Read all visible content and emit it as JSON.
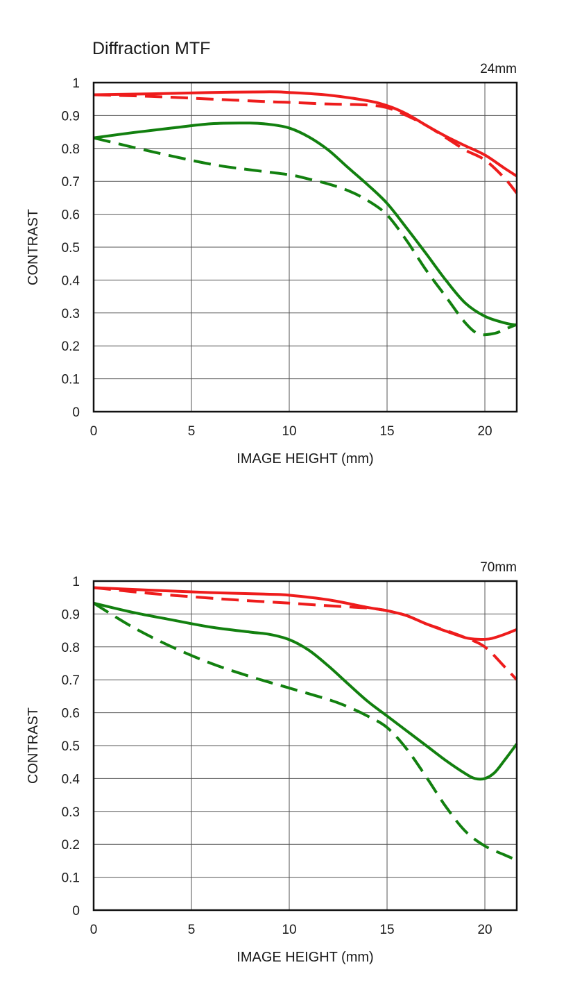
{
  "title": "Diffraction MTF",
  "colors": {
    "red": "#ee1c1c",
    "green": "#12800f",
    "grid": "#555555",
    "frame": "#111111"
  },
  "chart_data": [
    {
      "type": "line",
      "focal": "24mm",
      "xlabel": "IMAGE HEIGHT (mm)",
      "ylabel": "CONTRAST",
      "xlim": [
        0,
        21.63
      ],
      "ylim": [
        0,
        1
      ],
      "xticks": [
        "0",
        "5",
        "10",
        "15",
        "20"
      ],
      "yticks": [
        "0",
        "0.1",
        "0.2",
        "0.3",
        "0.4",
        "0.5",
        "0.6",
        "0.7",
        "0.8",
        "0.9",
        "1"
      ],
      "grid": true,
      "series": [
        {
          "color": "red",
          "style": "solid",
          "points": [
            [
              0,
              0.963
            ],
            [
              3,
              0.966
            ],
            [
              6,
              0.97
            ],
            [
              9,
              0.972
            ],
            [
              10,
              0.97
            ],
            [
              12,
              0.962
            ],
            [
              14,
              0.945
            ],
            [
              15,
              0.93
            ],
            [
              16,
              0.905
            ],
            [
              17,
              0.87
            ],
            [
              18,
              0.837
            ],
            [
              19,
              0.808
            ],
            [
              20,
              0.78
            ],
            [
              21,
              0.74
            ],
            [
              21.63,
              0.716
            ]
          ]
        },
        {
          "color": "red",
          "style": "dashed",
          "points": [
            [
              0,
              0.963
            ],
            [
              3,
              0.958
            ],
            [
              6,
              0.95
            ],
            [
              9,
              0.942
            ],
            [
              10,
              0.94
            ],
            [
              12,
              0.935
            ],
            [
              14,
              0.932
            ],
            [
              15,
              0.924
            ],
            [
              16,
              0.9
            ],
            [
              17,
              0.87
            ],
            [
              18,
              0.833
            ],
            [
              19,
              0.795
            ],
            [
              20,
              0.765
            ],
            [
              21,
              0.71
            ],
            [
              21.63,
              0.664
            ]
          ]
        },
        {
          "color": "green",
          "style": "solid",
          "points": [
            [
              0,
              0.832
            ],
            [
              2,
              0.848
            ],
            [
              4,
              0.862
            ],
            [
              6,
              0.875
            ],
            [
              8,
              0.877
            ],
            [
              9,
              0.873
            ],
            [
              10,
              0.862
            ],
            [
              11,
              0.835
            ],
            [
              12,
              0.795
            ],
            [
              13,
              0.742
            ],
            [
              14,
              0.69
            ],
            [
              15,
              0.633
            ],
            [
              16,
              0.558
            ],
            [
              17,
              0.48
            ],
            [
              18,
              0.4
            ],
            [
              19,
              0.33
            ],
            [
              20,
              0.29
            ],
            [
              21,
              0.27
            ],
            [
              21.63,
              0.263
            ]
          ]
        },
        {
          "color": "green",
          "style": "dashed",
          "points": [
            [
              0,
              0.832
            ],
            [
              3,
              0.79
            ],
            [
              6,
              0.752
            ],
            [
              8,
              0.735
            ],
            [
              10,
              0.72
            ],
            [
              11,
              0.707
            ],
            [
              12,
              0.692
            ],
            [
              13,
              0.672
            ],
            [
              14,
              0.642
            ],
            [
              15,
              0.598
            ],
            [
              16,
              0.52
            ],
            [
              17,
              0.43
            ],
            [
              18,
              0.35
            ],
            [
              19,
              0.27
            ],
            [
              19.7,
              0.236
            ],
            [
              20.5,
              0.238
            ],
            [
              21,
              0.25
            ],
            [
              21.63,
              0.265
            ]
          ]
        }
      ]
    },
    {
      "type": "line",
      "focal": "70mm",
      "xlabel": "IMAGE HEIGHT (mm)",
      "ylabel": "CONTRAST",
      "xlim": [
        0,
        21.63
      ],
      "ylim": [
        0,
        1
      ],
      "xticks": [
        "0",
        "5",
        "10",
        "15",
        "20"
      ],
      "yticks": [
        "0",
        "0.1",
        "0.2",
        "0.3",
        "0.4",
        "0.5",
        "0.6",
        "0.7",
        "0.8",
        "0.9",
        "1"
      ],
      "grid": true,
      "series": [
        {
          "color": "red",
          "style": "solid",
          "points": [
            [
              0,
              0.98
            ],
            [
              3,
              0.972
            ],
            [
              6,
              0.965
            ],
            [
              9,
              0.96
            ],
            [
              10,
              0.957
            ],
            [
              12,
              0.943
            ],
            [
              14,
              0.92
            ],
            [
              15,
              0.91
            ],
            [
              16,
              0.895
            ],
            [
              17,
              0.87
            ],
            [
              18,
              0.848
            ],
            [
              19,
              0.828
            ],
            [
              19.7,
              0.823
            ],
            [
              20.3,
              0.825
            ],
            [
              21,
              0.838
            ],
            [
              21.63,
              0.853
            ]
          ]
        },
        {
          "color": "red",
          "style": "dashed",
          "points": [
            [
              0,
              0.98
            ],
            [
              3,
              0.962
            ],
            [
              6,
              0.948
            ],
            [
              8,
              0.94
            ],
            [
              10,
              0.933
            ],
            [
              12,
              0.925
            ],
            [
              14,
              0.918
            ],
            [
              15,
              0.91
            ],
            [
              16,
              0.895
            ],
            [
              17,
              0.87
            ],
            [
              18,
              0.85
            ],
            [
              19,
              0.828
            ],
            [
              20,
              0.8
            ],
            [
              21,
              0.74
            ],
            [
              21.63,
              0.7
            ]
          ]
        },
        {
          "color": "green",
          "style": "solid",
          "points": [
            [
              0,
              0.933
            ],
            [
              2,
              0.905
            ],
            [
              4,
              0.882
            ],
            [
              6,
              0.86
            ],
            [
              8,
              0.845
            ],
            [
              9,
              0.838
            ],
            [
              10,
              0.822
            ],
            [
              11,
              0.79
            ],
            [
              12,
              0.742
            ],
            [
              13,
              0.688
            ],
            [
              14,
              0.635
            ],
            [
              15,
              0.59
            ],
            [
              16,
              0.545
            ],
            [
              17,
              0.5
            ],
            [
              18,
              0.455
            ],
            [
              19,
              0.415
            ],
            [
              19.5,
              0.4
            ],
            [
              20,
              0.4
            ],
            [
              20.5,
              0.418
            ],
            [
              21,
              0.455
            ],
            [
              21.63,
              0.505
            ]
          ]
        },
        {
          "color": "green",
          "style": "dashed",
          "points": [
            [
              0,
              0.933
            ],
            [
              2,
              0.86
            ],
            [
              4,
              0.8
            ],
            [
              6,
              0.75
            ],
            [
              8,
              0.71
            ],
            [
              10,
              0.675
            ],
            [
              12,
              0.64
            ],
            [
              13,
              0.618
            ],
            [
              14,
              0.59
            ],
            [
              15,
              0.555
            ],
            [
              16,
              0.49
            ],
            [
              17,
              0.405
            ],
            [
              18,
              0.315
            ],
            [
              19,
              0.24
            ],
            [
              20,
              0.195
            ],
            [
              21,
              0.168
            ],
            [
              21.63,
              0.152
            ]
          ]
        }
      ]
    }
  ]
}
